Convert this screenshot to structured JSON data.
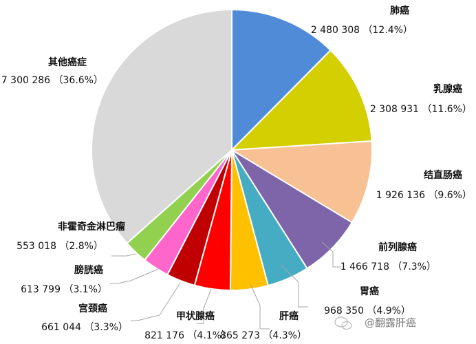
{
  "chart_data": {
    "type": "pie",
    "unit": "",
    "slices": [
      {
        "name": "肺癌",
        "value": 2480308,
        "value_label": "2 480 308",
        "pct_label": "（12.4%）",
        "color": "#4F8BD6"
      },
      {
        "name": "乳腺癌",
        "value": 2308931,
        "value_label": "2 308 931",
        "pct_label": "（11.6%）",
        "color": "#D4CF00"
      },
      {
        "name": "结直肠癌",
        "value": 1926136,
        "value_label": "1 926 136",
        "pct_label": "（9.6%）",
        "color": "#F8C194"
      },
      {
        "name": "前列腺癌",
        "value": 1466718,
        "value_label": "1 466 718",
        "pct_label": "（7.3%）",
        "color": "#7E64A8"
      },
      {
        "name": "胃癌",
        "value": 968350,
        "value_label": "968 350",
        "pct_label": "（4.9%）",
        "color": "#45ACC4"
      },
      {
        "name": "肝癌",
        "value": 865273,
        "value_label": "865 273",
        "pct_label": "（4.3%）",
        "color": "#FFC000"
      },
      {
        "name": "甲状腺癌",
        "value": 821176,
        "value_label": "821 176",
        "pct_label": "（4.1%）",
        "color": "#FF0000"
      },
      {
        "name": "宫颈癌",
        "value": 661044,
        "value_label": "661 044",
        "pct_label": "（3.3%）",
        "color": "#C00000"
      },
      {
        "name": "膀胱癌",
        "value": 613799,
        "value_label": "613 799",
        "pct_label": "（3.1%）",
        "color": "#FF66CC"
      },
      {
        "name": "非霍奇金淋巴瘤",
        "value": 553018,
        "value_label": "553 018",
        "pct_label": "（2.8%）",
        "color": "#92D050"
      },
      {
        "name": "其他癌症",
        "value": 7300286,
        "value_label": "7 300 286",
        "pct_label": "（36.6%）",
        "color": "#D9D9D9"
      }
    ]
  },
  "watermark": {
    "text": "@翻露肝癌",
    "icon": "wechat-bubble-icon"
  }
}
